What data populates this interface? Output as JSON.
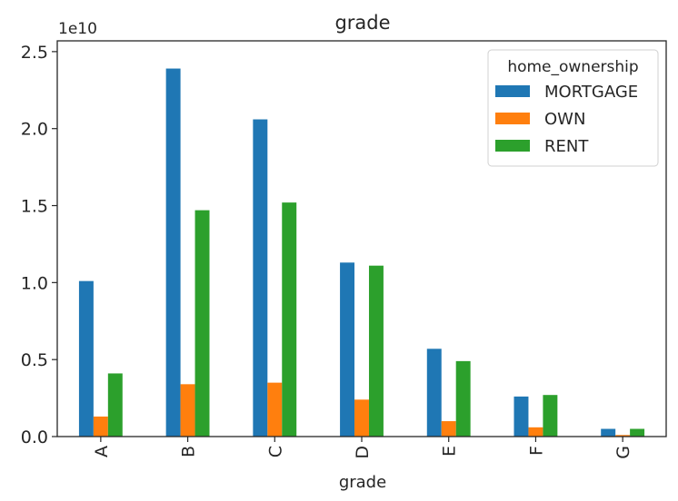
{
  "chart_data": {
    "type": "bar",
    "title": "grade",
    "xlabel": "grade",
    "ylabel": "",
    "y_offset_label": "1e10",
    "categories": [
      "A",
      "B",
      "C",
      "D",
      "E",
      "F",
      "G"
    ],
    "y_ticks": [
      0.0,
      0.5,
      1.0,
      1.5,
      2.0,
      2.5
    ],
    "y_tick_labels": [
      "0.0",
      "0.5",
      "1.0",
      "1.5",
      "2.0",
      "2.5"
    ],
    "ylim": [
      0,
      2.57
    ],
    "legend": {
      "title": "home_ownership",
      "placement": "top-right"
    },
    "series": [
      {
        "name": "MORTGAGE",
        "color": "#1f77b4",
        "values": [
          1.01,
          2.39,
          2.06,
          1.13,
          0.57,
          0.26,
          0.05
        ]
      },
      {
        "name": "OWN",
        "color": "#ff7f0e",
        "values": [
          0.13,
          0.34,
          0.35,
          0.24,
          0.1,
          0.06,
          0.01
        ]
      },
      {
        "name": "RENT",
        "color": "#2ca02c",
        "values": [
          0.41,
          1.47,
          1.52,
          1.11,
          0.49,
          0.27,
          0.05
        ]
      }
    ],
    "grid": false
  }
}
